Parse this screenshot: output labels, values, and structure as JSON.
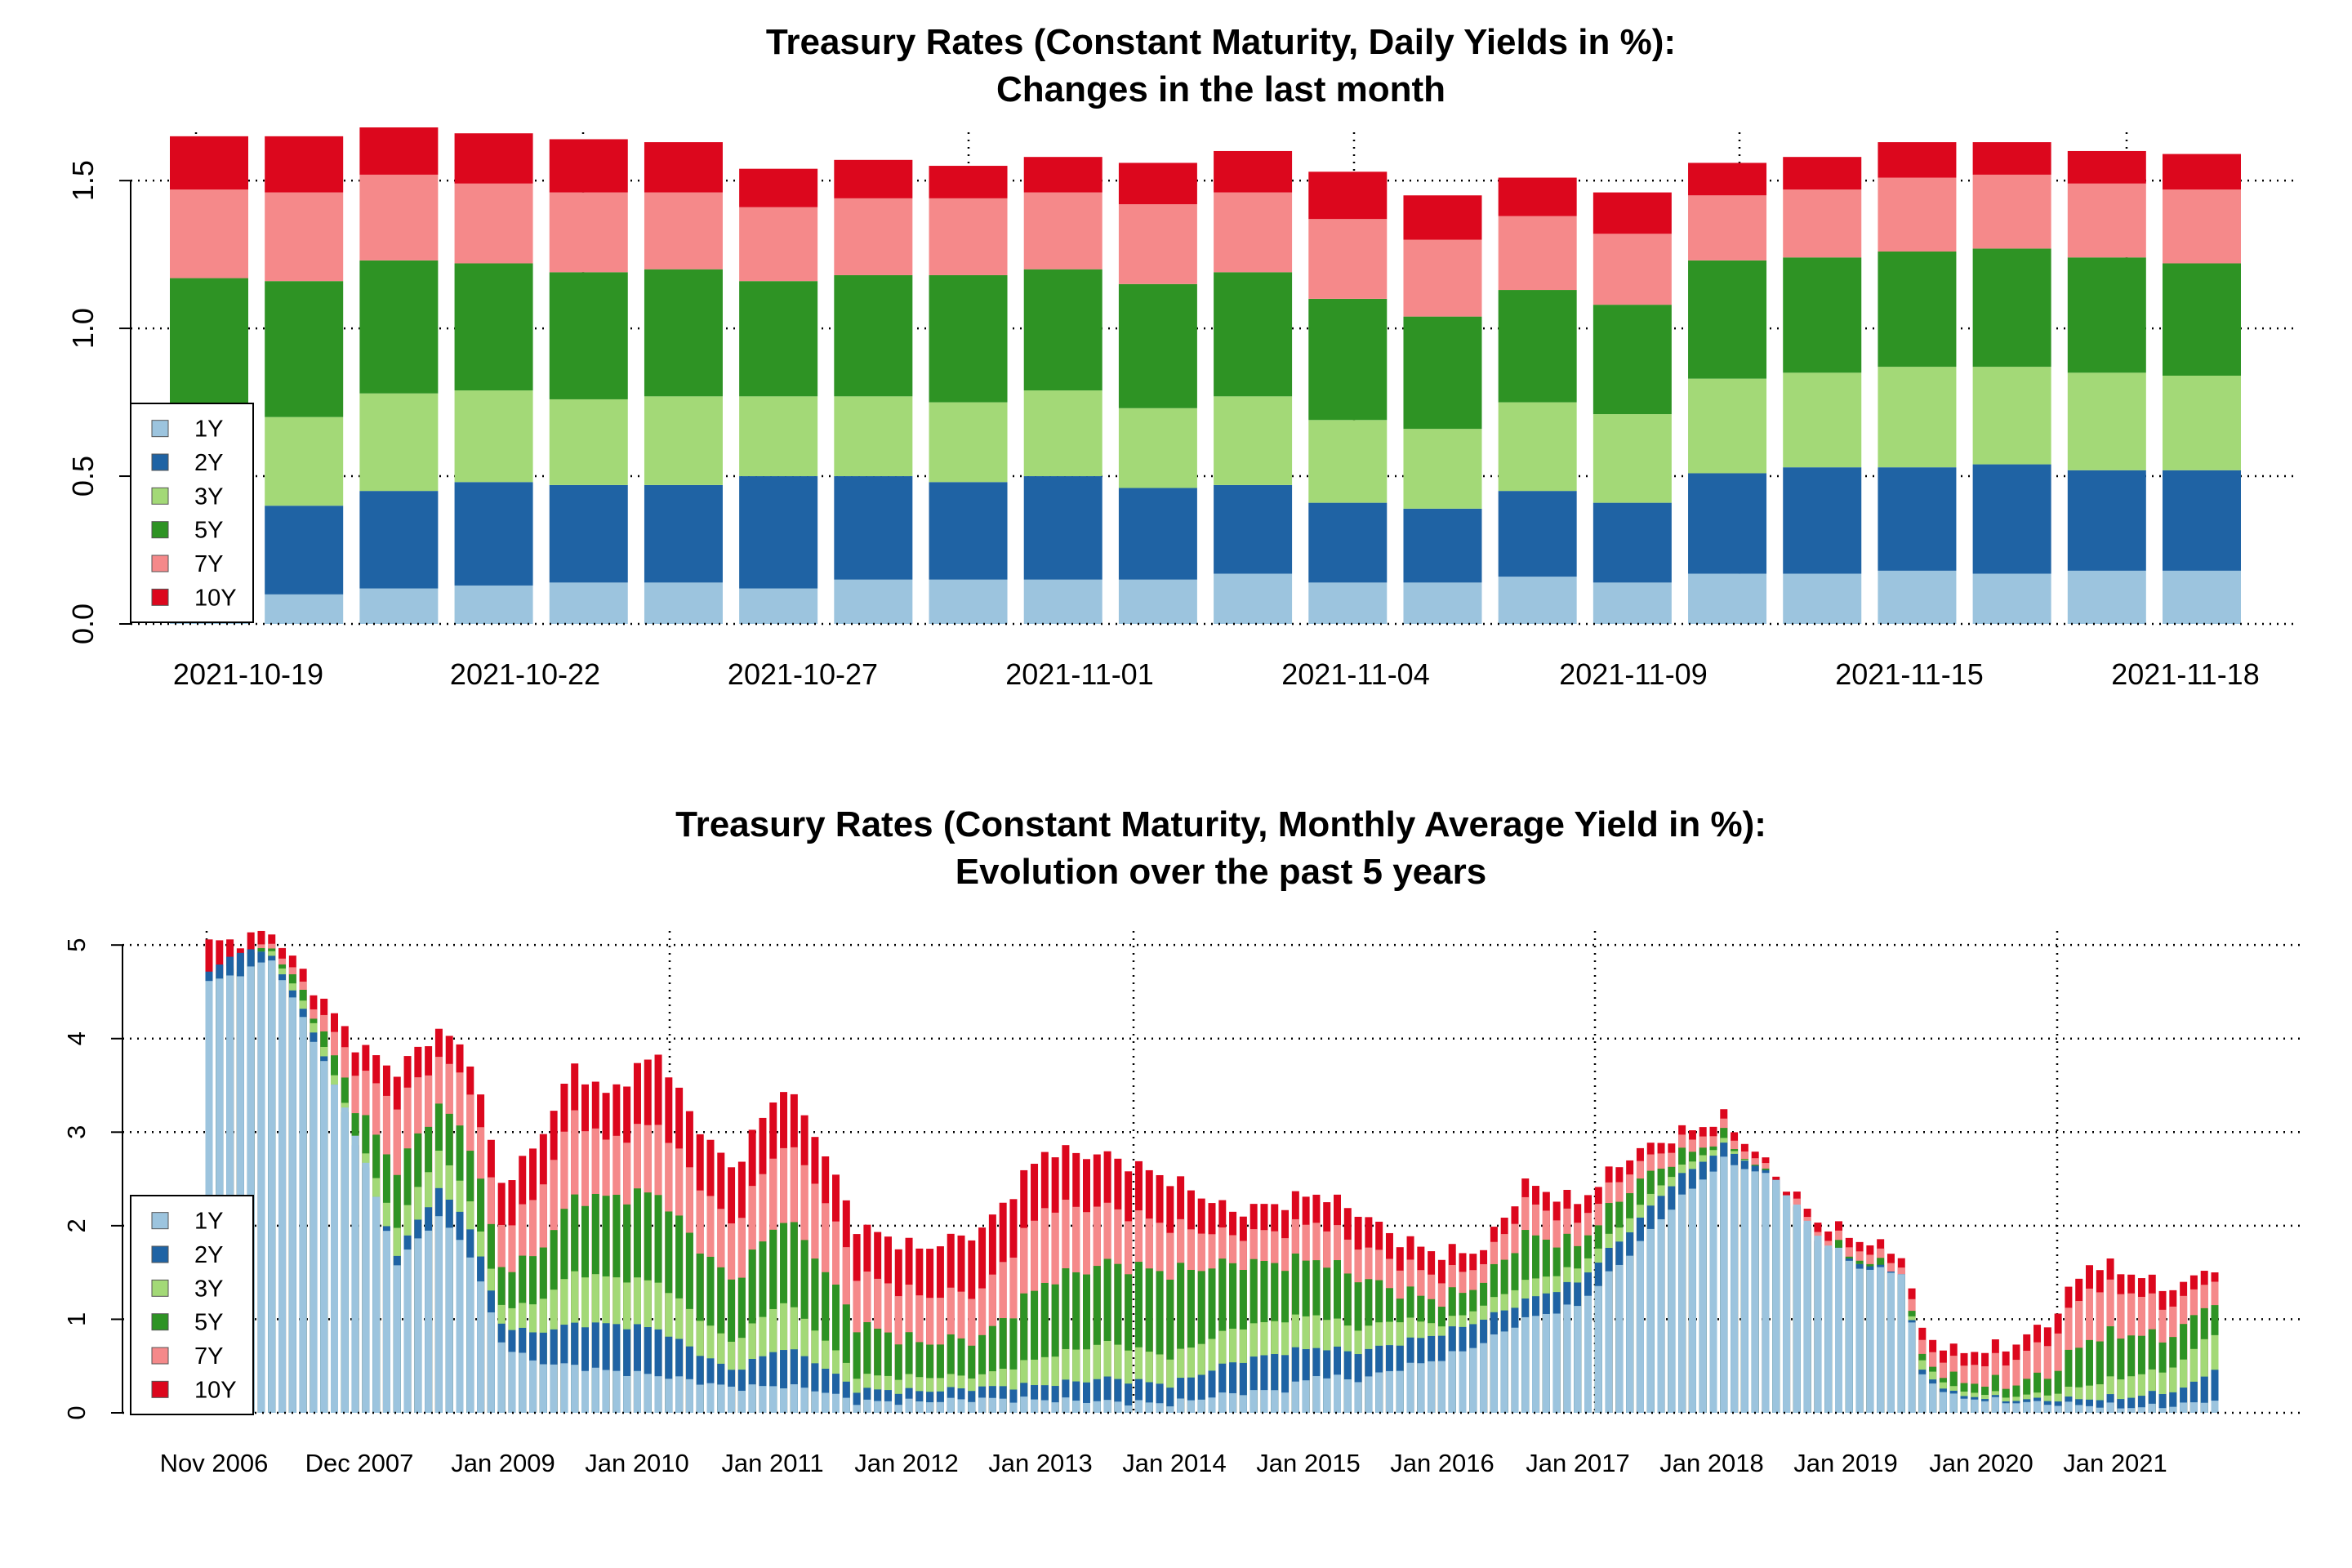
{
  "colors": {
    "1Y": "#9cc4de",
    "2Y": "#1f63a4",
    "3Y": "#a3d977",
    "5Y": "#2e9324",
    "7Y": "#f5898a",
    "10Y": "#dc071d"
  },
  "chart_data": [
    {
      "type": "bar",
      "stacked": true,
      "title": "Treasury Rates (Constant Maturity, Daily Yields in %):",
      "subtitle": "Changes in the last month",
      "ylim": [
        0,
        1.68
      ],
      "yticks": [
        0.0,
        0.5,
        1.0,
        1.5
      ],
      "ytick_labels": [
        "0.0",
        "0.5",
        "1.0",
        "1.5"
      ],
      "grid": true,
      "legend_position": "bottom-left",
      "x_tick_labels": [
        "2021-10-19",
        "2021-10-22",
        "2021-10-27",
        "2021-11-01",
        "2021-11-04",
        "2021-11-09",
        "2021-11-15",
        "2021-11-18"
      ],
      "series_names": [
        "1Y",
        "2Y",
        "3Y",
        "5Y",
        "7Y",
        "10Y"
      ],
      "cumulative": [
        [
          0.11,
          0.41,
          0.71,
          1.17,
          1.47,
          1.65
        ],
        [
          0.1,
          0.4,
          0.7,
          1.16,
          1.46,
          1.65
        ],
        [
          0.12,
          0.45,
          0.78,
          1.23,
          1.52,
          1.68
        ],
        [
          0.13,
          0.48,
          0.79,
          1.22,
          1.49,
          1.66
        ],
        [
          0.14,
          0.47,
          0.76,
          1.19,
          1.46,
          1.64
        ],
        [
          0.14,
          0.47,
          0.77,
          1.2,
          1.46,
          1.63
        ],
        [
          0.12,
          0.5,
          0.77,
          1.16,
          1.41,
          1.54
        ],
        [
          0.15,
          0.5,
          0.77,
          1.18,
          1.44,
          1.57
        ],
        [
          0.15,
          0.48,
          0.75,
          1.18,
          1.44,
          1.55
        ],
        [
          0.15,
          0.5,
          0.79,
          1.2,
          1.46,
          1.58
        ],
        [
          0.15,
          0.46,
          0.73,
          1.15,
          1.42,
          1.56
        ],
        [
          0.17,
          0.47,
          0.77,
          1.19,
          1.46,
          1.6
        ],
        [
          0.14,
          0.41,
          0.69,
          1.1,
          1.37,
          1.53
        ],
        [
          0.14,
          0.39,
          0.66,
          1.04,
          1.3,
          1.45
        ],
        [
          0.16,
          0.45,
          0.75,
          1.13,
          1.38,
          1.51
        ],
        [
          0.14,
          0.41,
          0.71,
          1.08,
          1.32,
          1.46
        ],
        [
          0.17,
          0.51,
          0.83,
          1.23,
          1.45,
          1.56
        ],
        [
          0.17,
          0.53,
          0.85,
          1.24,
          1.47,
          1.58
        ],
        [
          0.18,
          0.53,
          0.87,
          1.26,
          1.51,
          1.63
        ],
        [
          0.17,
          0.54,
          0.87,
          1.27,
          1.52,
          1.63
        ],
        [
          0.18,
          0.52,
          0.85,
          1.24,
          1.49,
          1.6
        ],
        [
          0.18,
          0.52,
          0.84,
          1.22,
          1.47,
          1.59
        ]
      ]
    },
    {
      "type": "bar",
      "stacked": true,
      "overlapping": true,
      "title": "Treasury Rates (Constant Maturity, Monthly Average Yield in %):",
      "subtitle": "Evolution over the past 5 years",
      "ylim": [
        0,
        5.15
      ],
      "yticks": [
        0,
        1,
        2,
        3,
        4,
        5
      ],
      "ytick_labels": [
        "0",
        "1",
        "2",
        "3",
        "4",
        "5"
      ],
      "grid": true,
      "legend_position": "bottom-left",
      "x_tick_labels": [
        "Nov 2006",
        "Dec 2007",
        "Jan 2009",
        "Jan 2010",
        "Jan 2011",
        "Jan 2012",
        "Jan 2013",
        "Jan 2014",
        "Jan 2015",
        "Jan 2016",
        "Jan 2017",
        "Jan 2018",
        "Jan 2019",
        "Jan 2020",
        "Jan 2021"
      ],
      "series_names": [
        "1Y",
        "2Y",
        "3Y",
        "5Y",
        "7Y",
        "10Y"
      ],
      "anchors": [
        {
          "i": 0,
          "v": [
            4.6,
            4.7,
            4.6,
            4.55,
            4.57,
            5.02
          ]
        },
        {
          "i": 3,
          "v": [
            4.7,
            4.95,
            4.85,
            4.8,
            4.82,
            5.05
          ]
        },
        {
          "i": 6,
          "v": [
            4.85,
            4.9,
            4.95,
            5.0,
            5.05,
            5.15
          ]
        },
        {
          "i": 10,
          "v": [
            4.0,
            4.1,
            4.2,
            4.3,
            4.4,
            4.55
          ]
        },
        {
          "i": 14,
          "v": [
            3.0,
            2.9,
            3.0,
            3.3,
            3.7,
            3.95
          ]
        },
        {
          "i": 18,
          "v": [
            1.6,
            1.7,
            2.0,
            2.6,
            3.3,
            3.65
          ]
        },
        {
          "i": 22,
          "v": [
            2.1,
            2.4,
            2.8,
            3.3,
            3.8,
            4.1
          ]
        },
        {
          "i": 25,
          "v": [
            1.7,
            2.0,
            2.3,
            2.9,
            3.5,
            3.8
          ]
        },
        {
          "i": 28,
          "v": [
            0.75,
            0.95,
            1.15,
            1.55,
            2.0,
            2.45
          ]
        },
        {
          "i": 31,
          "v": [
            0.55,
            0.85,
            1.15,
            1.65,
            2.25,
            2.8
          ]
        },
        {
          "i": 35,
          "v": [
            0.5,
            0.95,
            1.5,
            2.3,
            3.2,
            3.7
          ]
        },
        {
          "i": 38,
          "v": [
            0.45,
            0.95,
            1.45,
            2.3,
            2.9,
            3.4
          ]
        },
        {
          "i": 43,
          "v": [
            0.4,
            0.9,
            1.4,
            2.35,
            3.1,
            3.85
          ]
        },
        {
          "i": 46,
          "v": [
            0.35,
            0.7,
            1.1,
            1.9,
            2.6,
            3.2
          ]
        },
        {
          "i": 50,
          "v": [
            0.27,
            0.45,
            0.75,
            1.4,
            2.0,
            2.6
          ]
        },
        {
          "i": 55,
          "v": [
            0.29,
            0.7,
            1.2,
            2.1,
            2.9,
            3.5
          ]
        },
        {
          "i": 58,
          "v": [
            0.25,
            0.55,
            0.9,
            1.7,
            2.5,
            3.0
          ]
        },
        {
          "i": 62,
          "v": [
            0.12,
            0.25,
            0.4,
            0.95,
            1.5,
            2.0
          ]
        },
        {
          "i": 68,
          "v": [
            0.12,
            0.23,
            0.38,
            0.75,
            1.25,
            1.75
          ]
        },
        {
          "i": 74,
          "v": [
            0.15,
            0.27,
            0.4,
            0.8,
            1.3,
            1.95
          ]
        },
        {
          "i": 80,
          "v": [
            0.14,
            0.3,
            0.6,
            1.4,
            2.2,
            2.8
          ]
        },
        {
          "i": 86,
          "v": [
            0.12,
            0.37,
            0.75,
            1.6,
            2.2,
            2.75
          ]
        },
        {
          "i": 92,
          "v": [
            0.1,
            0.3,
            0.6,
            1.5,
            2.0,
            2.5
          ]
        },
        {
          "i": 98,
          "v": [
            0.21,
            0.54,
            0.9,
            1.6,
            1.9,
            2.15
          ]
        },
        {
          "i": 103,
          "v": [
            0.25,
            0.65,
            1.0,
            1.6,
            1.95,
            2.25
          ]
        },
        {
          "i": 106,
          "v": [
            0.4,
            0.7,
            1.05,
            1.65,
            2.05,
            2.35
          ]
        },
        {
          "i": 110,
          "v": [
            0.35,
            0.65,
            0.9,
            1.45,
            1.8,
            2.15
          ]
        },
        {
          "i": 114,
          "v": [
            0.48,
            0.75,
            1.0,
            1.3,
            1.6,
            1.85
          ]
        },
        {
          "i": 118,
          "v": [
            0.58,
            0.85,
            0.95,
            1.2,
            1.45,
            1.7
          ]
        },
        {
          "i": 122,
          "v": [
            0.75,
            1.0,
            1.15,
            1.4,
            1.6,
            1.75
          ]
        },
        {
          "i": 126,
          "v": [
            1.0,
            1.2,
            1.4,
            1.9,
            2.25,
            2.45
          ]
        },
        {
          "i": 131,
          "v": [
            1.15,
            1.4,
            1.55,
            1.8,
            2.05,
            2.25
          ]
        },
        {
          "i": 136,
          "v": [
            1.7,
            1.95,
            2.1,
            2.4,
            2.6,
            2.75
          ]
        },
        {
          "i": 140,
          "v": [
            2.2,
            2.45,
            2.55,
            2.7,
            2.85,
            2.95
          ]
        },
        {
          "i": 145,
          "v": [
            2.7,
            2.85,
            2.9,
            2.95,
            3.05,
            3.15
          ]
        },
        {
          "i": 150,
          "v": [
            2.5,
            2.5,
            2.45,
            2.45,
            2.5,
            2.55
          ]
        },
        {
          "i": 154,
          "v": [
            1.9,
            1.85,
            1.8,
            1.85,
            1.95,
            2.05
          ]
        },
        {
          "i": 158,
          "v": [
            1.55,
            1.6,
            1.6,
            1.65,
            1.75,
            1.85
          ]
        },
        {
          "i": 162,
          "v": [
            1.5,
            1.5,
            1.48,
            1.5,
            1.6,
            1.7
          ]
        },
        {
          "i": 164,
          "v": [
            0.4,
            0.45,
            0.55,
            0.6,
            0.75,
            0.88
          ]
        },
        {
          "i": 167,
          "v": [
            0.17,
            0.2,
            0.25,
            0.35,
            0.52,
            0.65
          ]
        },
        {
          "i": 172,
          "v": [
            0.12,
            0.14,
            0.18,
            0.3,
            0.55,
            0.7
          ]
        },
        {
          "i": 176,
          "v": [
            0.1,
            0.14,
            0.2,
            0.4,
            0.75,
            0.95
          ]
        },
        {
          "i": 180,
          "v": [
            0.08,
            0.15,
            0.3,
            0.8,
            1.35,
            1.6
          ]
        },
        {
          "i": 184,
          "v": [
            0.06,
            0.17,
            0.4,
            0.85,
            1.3,
            1.5
          ]
        },
        {
          "i": 187,
          "v": [
            0.07,
            0.22,
            0.45,
            0.8,
            1.15,
            1.35
          ]
        },
        {
          "i": 189,
          "v": [
            0.09,
            0.25,
            0.55,
            0.9,
            1.2,
            1.35
          ]
        },
        {
          "i": 191,
          "v": [
            0.12,
            0.4,
            0.8,
            1.15,
            1.4,
            1.55
          ]
        },
        {
          "i": 192,
          "v": [
            0.15,
            0.48,
            0.85,
            1.2,
            1.45,
            1.55
          ]
        }
      ]
    }
  ]
}
